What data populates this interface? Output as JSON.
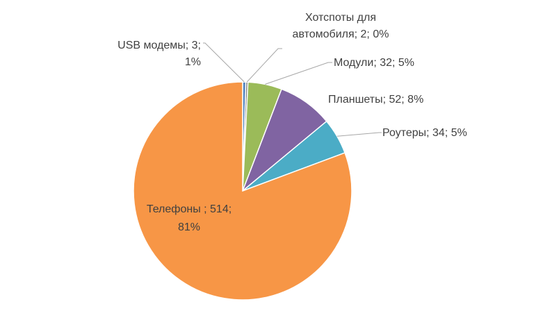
{
  "chart_data": {
    "type": "pie",
    "title": "",
    "slices": [
      {
        "name": "USB модемы",
        "value": 3,
        "percent": "1%",
        "color": "#4f81bd",
        "label_lines": [
          "USB модемы; 3;",
          "1%"
        ]
      },
      {
        "name": "Хотспоты для автомобиля",
        "value": 2,
        "percent": "0%",
        "color": "#7f7f7f",
        "label_lines": [
          "Хотспоты для",
          "автомобиля; 2; 0%"
        ]
      },
      {
        "name": "Модули",
        "value": 32,
        "percent": "5%",
        "color": "#9bbb59",
        "label_lines": [
          "Модули; 32; 5%"
        ]
      },
      {
        "name": "Планшеты",
        "value": 52,
        "percent": "8%",
        "color": "#8064a2",
        "label_lines": [
          "Планшеты; 52; 8%"
        ]
      },
      {
        "name": "Роутеры",
        "value": 34,
        "percent": "5%",
        "color": "#4bacc6",
        "label_lines": [
          "Роутеры; 34; 5%"
        ]
      },
      {
        "name": "Телефоны",
        "value": 514,
        "percent": "81%",
        "color": "#f79646",
        "label_lines": [
          "Телефоны ; 514;",
          "81%"
        ]
      }
    ],
    "legend": "none",
    "grid": false
  }
}
